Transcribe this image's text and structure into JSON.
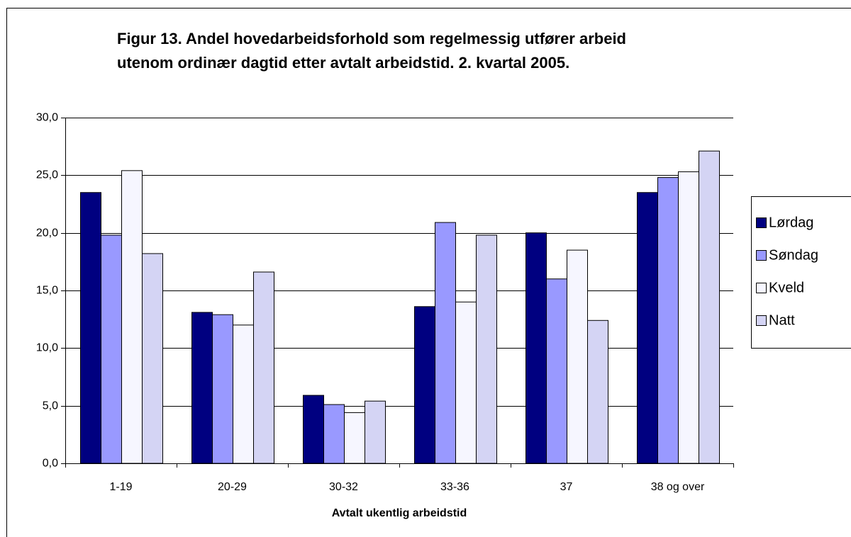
{
  "chart_data": {
    "type": "bar",
    "title": [
      "Figur 13. Andel hovedarbeidsforhold som regelmessig utfører arbeid",
      "utenom ordinær dagtid etter avtalt arbeidstid. 2. kvartal 2005."
    ],
    "x_label": "Avtalt ukentlig arbeidstid",
    "categories": [
      "1-19",
      "20-29",
      "30-32",
      "33-36",
      "37",
      "38 og over"
    ],
    "series": [
      {
        "name": "Lørdag",
        "color": "#000080",
        "values": [
          23.5,
          13.1,
          5.9,
          13.6,
          20.0,
          23.5
        ]
      },
      {
        "name": "Søndag",
        "color": "#9999ff",
        "values": [
          19.8,
          12.9,
          5.1,
          20.9,
          16.0,
          24.8
        ]
      },
      {
        "name": "Kveld",
        "color": "#f6f6ff",
        "values": [
          25.4,
          12.0,
          4.4,
          14.0,
          18.5,
          25.3
        ]
      },
      {
        "name": "Natt",
        "color": "#d4d4f4",
        "values": [
          18.2,
          16.6,
          5.4,
          19.8,
          12.4,
          27.1
        ]
      }
    ],
    "ylim": [
      0,
      30
    ],
    "yticks": [
      {
        "value": 0,
        "label": "0,0"
      },
      {
        "value": 5,
        "label": "5,0"
      },
      {
        "value": 10,
        "label": "10,0"
      },
      {
        "value": 15,
        "label": "15,0"
      },
      {
        "value": 20,
        "label": "20,0"
      },
      {
        "value": 25,
        "label": "25,0"
      },
      {
        "value": 30,
        "label": "30,0"
      }
    ],
    "grid": true,
    "legend": "right"
  }
}
